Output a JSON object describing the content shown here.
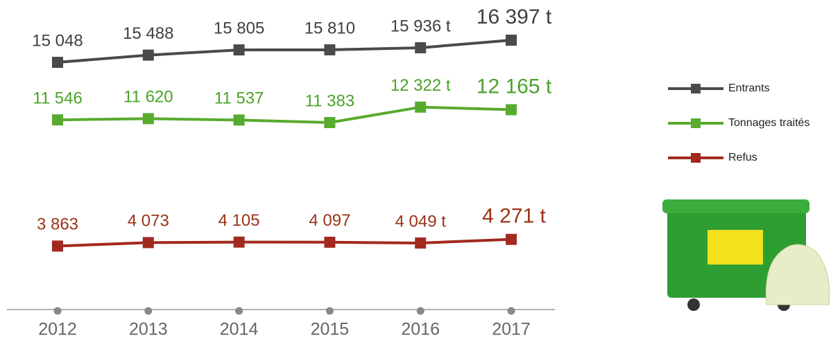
{
  "chart_data": {
    "type": "line",
    "categories": [
      "2012",
      "2013",
      "2014",
      "2015",
      "2016",
      "2017"
    ],
    "ylim": [
      0,
      18000
    ],
    "grid": false,
    "legend": "right",
    "series": [
      {
        "name": "Entrants",
        "color": "#4a4a4a",
        "values": [
          15048,
          15488,
          15805,
          15810,
          15936,
          16397
        ],
        "value_labels": [
          "15 048",
          "15 488",
          "15 805",
          "15 810",
          "15 936 t",
          "16 397 t"
        ]
      },
      {
        "name": "Tonnages traités",
        "color": "#58ab2e",
        "values": [
          11546,
          11620,
          11537,
          11383,
          12322,
          12165
        ],
        "value_labels": [
          "11 546",
          "11 620",
          "11 537",
          "11 383",
          "12 322 t",
          "12 165 t"
        ]
      },
      {
        "name": "Refus",
        "color": "#a2291f",
        "values": [
          3863,
          4073,
          4105,
          4097,
          4049,
          4271
        ],
        "value_labels": [
          "3 863",
          "4 073",
          "4 105",
          "4 097",
          "4 049 t",
          "4 271 t"
        ]
      }
    ]
  }
}
